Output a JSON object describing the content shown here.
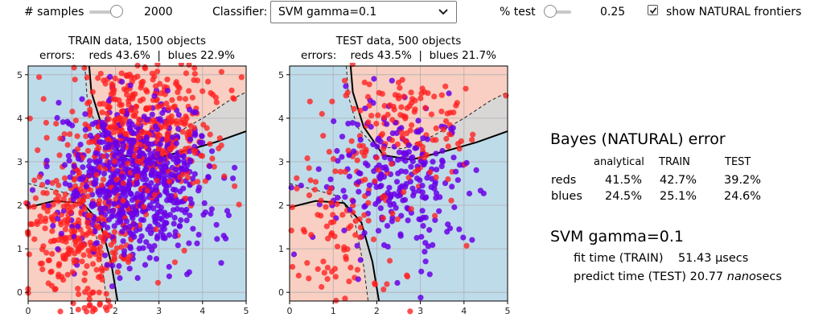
{
  "controls": {
    "samples": {
      "label": "# samples",
      "value": "2000",
      "level": 0.85
    },
    "classifier": {
      "label": "Classifier:",
      "selected": "SVM gamma=0.1"
    },
    "test": {
      "label": "% test",
      "value": "0.25",
      "level": 0.0
    },
    "frontiers": {
      "label": "show NATURAL frontiers",
      "checked": true
    }
  },
  "icons": {
    "dropdown": "chevron-down-icon",
    "check": "check-icon"
  },
  "colors": {
    "red_region": "#f8cfc2",
    "blue_region": "#bedbea",
    "natural_band": "#d9d6d6",
    "red_points": "#ff1f1f",
    "blue_points": "#6a00e8"
  },
  "plots": {
    "train": {
      "title": "TRAIN data, 1500 objects",
      "errors_label": "errors:",
      "errors_reds": "reds 43.6%",
      "sep": "|",
      "errors_blues": "blues 22.9%",
      "n_points": 1500
    },
    "test": {
      "title": "TEST data, 500 objects",
      "errors_label": "errors:",
      "errors_reds": "reds 43.5%",
      "sep": "|",
      "errors_blues": "blues 21.7%",
      "n_points": 500
    },
    "xlim": [
      0,
      5
    ],
    "ylim": [
      -0.2,
      5.2
    ],
    "ticks": [
      "0",
      "1",
      "2",
      "3",
      "4",
      "5"
    ]
  },
  "bayes": {
    "title": "Bayes (NATURAL) error",
    "headers": [
      "analytical",
      "TRAIN",
      "TEST"
    ],
    "rows": [
      {
        "label": "reds",
        "analytical": "41.5%",
        "train": "42.7%",
        "test": "39.2%"
      },
      {
        "label": "blues",
        "analytical": "24.5%",
        "train": "25.1%",
        "test": "24.6%"
      }
    ]
  },
  "svm": {
    "title": "SVM gamma=0.1",
    "fit_label": "fit time  (TRAIN)",
    "fit_value": "51.43",
    "fit_unit": "μsecs",
    "predict_label": "predict time (TEST)",
    "predict_value": "20.77",
    "predict_unit": "nano",
    "predict_unit_suffix": "secs"
  }
}
